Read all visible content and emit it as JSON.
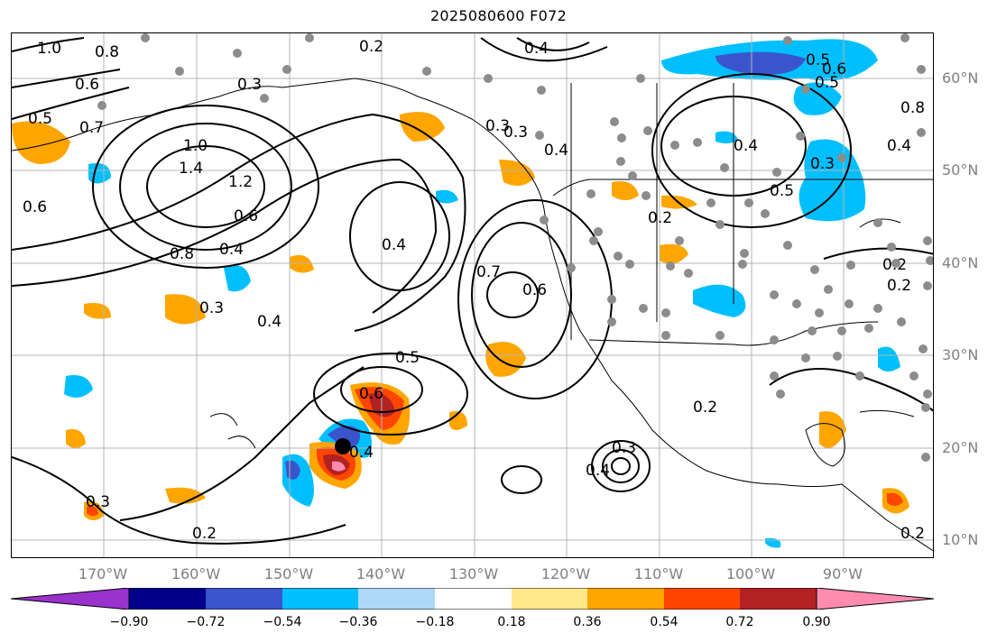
{
  "title": "2025080600 F072",
  "map": {
    "longitude_labels": [
      "170°W",
      "160°W",
      "150°W",
      "140°W",
      "130°W",
      "120°W",
      "110°W",
      "100°W",
      "90°W"
    ],
    "latitude_labels": [
      "60°N",
      "50°N",
      "40°N",
      "30°N",
      "20°N",
      "10°N"
    ],
    "contour_labels": [
      "1.0",
      "0.8",
      "0.6",
      "0.5",
      "0.7",
      "0.6",
      "1.0",
      "1.4",
      "1.2",
      "0.6",
      "0.8",
      "0.4",
      "0.3",
      "0.4",
      "0.2",
      "0.4",
      "0.3",
      "0.4",
      "0.7",
      "0.6",
      "0.5",
      "0.6",
      "0.4",
      "0.4",
      "0.3",
      "0.2",
      "0.3",
      "0.2",
      "0.4",
      "0.5",
      "0.3",
      "0.5",
      "0.4",
      "0.6",
      "0.5",
      "0.8",
      "0.2",
      "0.2",
      "0.2",
      "0.3",
      "0.4",
      "0.3",
      "0.2"
    ],
    "colors": {
      "contour_line": "#000000",
      "station_dot": "#8c8c8c",
      "storm_center": "#000000",
      "grid": "#b4b4b4"
    }
  },
  "colorbar": {
    "ticks": [
      "−0.90",
      "−0.72",
      "−0.54",
      "−0.36",
      "−0.18",
      "0.18",
      "0.36",
      "0.54",
      "0.72",
      "0.90"
    ],
    "colors": [
      "#9932cc",
      "#00008b",
      "#3a55cc",
      "#00bfff",
      "#add8f6",
      "#ffffff",
      "#ffe88a",
      "#ffa500",
      "#ff4500",
      "#b22222",
      "#ff8cb0"
    ]
  }
}
